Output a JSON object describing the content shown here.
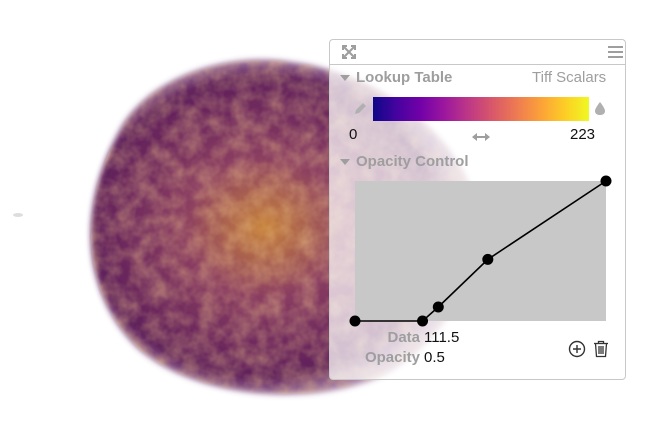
{
  "lookup_table": {
    "header": "Lookup Table",
    "source": "Tiff Scalars",
    "range_min": "0",
    "range_max": "223",
    "colormap": "plasma"
  },
  "opacity_control": {
    "header": "Opacity Control",
    "data_label": "Data",
    "data_value": "111.5",
    "opacity_label": "Opacity",
    "opacity_value": "0.5",
    "control_points": [
      {
        "data": 0,
        "opacity": 0.0
      },
      {
        "data": 60,
        "opacity": 0.0
      },
      {
        "data": 74,
        "opacity": 0.1
      },
      {
        "data": 118,
        "opacity": 0.44
      },
      {
        "data": 223,
        "opacity": 1.0
      }
    ],
    "data_range": [
      0,
      223
    ]
  },
  "icons": {
    "expand": "expand-icon",
    "menu": "hamburger-menu-icon",
    "edit": "pencil-icon",
    "color_drop": "droplet-icon",
    "range": "horizontal-arrows-icon",
    "add": "plus-circle-icon",
    "delete": "trash-icon"
  },
  "colors": {
    "panel_border": "#c8c8c8",
    "header_text": "#9e9e9e",
    "opacity_canvas": "#c8c8c8"
  }
}
